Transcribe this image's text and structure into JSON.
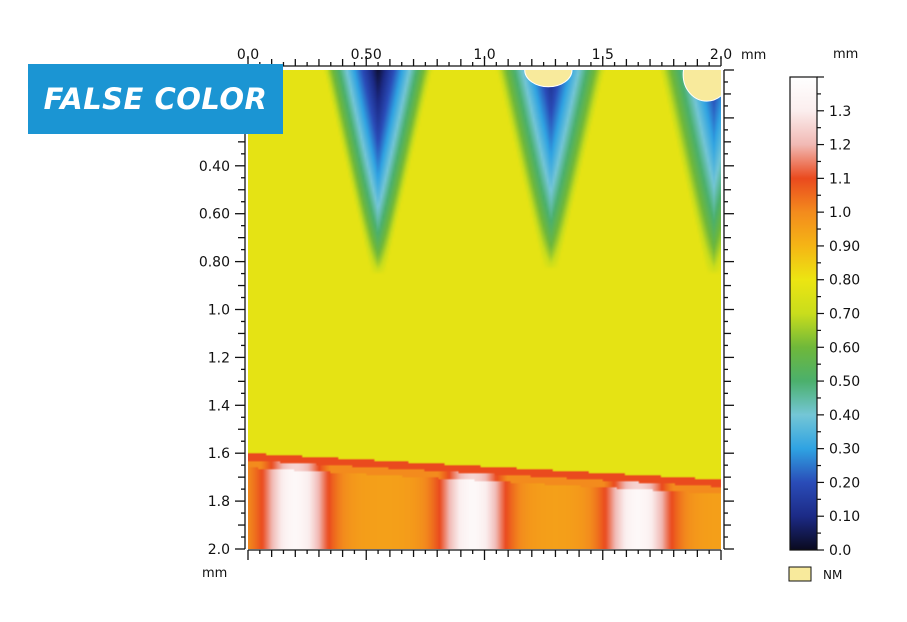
{
  "banner": {
    "text": "FALSE COLOR"
  },
  "chart_data": {
    "type": "heatmap",
    "x_axis": {
      "unit": "mm",
      "range": [
        0,
        2.0
      ],
      "ticks": [
        {
          "v": 0,
          "label": "0.0"
        },
        {
          "v": 0.5,
          "label": "0.50"
        },
        {
          "v": 1.0,
          "label": "1.0"
        },
        {
          "v": 1.5,
          "label": "1.5"
        },
        {
          "v": 2.0,
          "label": "2.0"
        }
      ]
    },
    "y_axis": {
      "unit": "mm",
      "range": [
        0,
        2.0
      ],
      "ticks": [
        {
          "v": 0.4,
          "label": "0.40"
        },
        {
          "v": 0.6,
          "label": "0.60"
        },
        {
          "v": 0.8,
          "label": "0.80"
        },
        {
          "v": 1.0,
          "label": "1.0"
        },
        {
          "v": 1.2,
          "label": "1.2"
        },
        {
          "v": 1.4,
          "label": "1.4"
        },
        {
          "v": 1.6,
          "label": "1.6"
        },
        {
          "v": 1.8,
          "label": "1.8"
        },
        {
          "v": 2.0,
          "label": "2.0"
        }
      ]
    },
    "colorbar": {
      "unit": "mm",
      "range": [
        0,
        1.4
      ],
      "ticks": [
        {
          "v": 0.0,
          "label": "0.0"
        },
        {
          "v": 0.1,
          "label": "0.10"
        },
        {
          "v": 0.2,
          "label": "0.20"
        },
        {
          "v": 0.3,
          "label": "0.30"
        },
        {
          "v": 0.4,
          "label": "0.40"
        },
        {
          "v": 0.5,
          "label": "0.50"
        },
        {
          "v": 0.6,
          "label": "0.60"
        },
        {
          "v": 0.7,
          "label": "0.70"
        },
        {
          "v": 0.8,
          "label": "0.80"
        },
        {
          "v": 0.9,
          "label": "0.90"
        },
        {
          "v": 1.0,
          "label": "1.0"
        },
        {
          "v": 1.1,
          "label": "1.1"
        },
        {
          "v": 1.2,
          "label": "1.2"
        },
        {
          "v": 1.3,
          "label": "1.3"
        }
      ],
      "stops": [
        {
          "v": 0.0,
          "color": "#0a0a1e"
        },
        {
          "v": 0.1,
          "color": "#1c2a86"
        },
        {
          "v": 0.2,
          "color": "#2a4cb8"
        },
        {
          "v": 0.3,
          "color": "#2fa3e2"
        },
        {
          "v": 0.4,
          "color": "#74c6d6"
        },
        {
          "v": 0.5,
          "color": "#4bb06c"
        },
        {
          "v": 0.6,
          "color": "#6fb83a"
        },
        {
          "v": 0.7,
          "color": "#c9dd1c"
        },
        {
          "v": 0.8,
          "color": "#ece512"
        },
        {
          "v": 0.9,
          "color": "#f5b515"
        },
        {
          "v": 1.0,
          "color": "#f38b1d"
        },
        {
          "v": 1.1,
          "color": "#ea4a1e"
        },
        {
          "v": 1.2,
          "color": "#f1b9b4"
        },
        {
          "v": 1.3,
          "color": "#fbeeee"
        },
        {
          "v": 1.4,
          "color": "#ffffff"
        }
      ]
    },
    "nm_legend": {
      "label": "NM",
      "color": "#f8ea9c"
    },
    "surface": {
      "base_value": 0.78,
      "grooves": [
        {
          "x": 0.55,
          "depth_value": 0.02,
          "tip_y": 0.85
        },
        {
          "x": 1.28,
          "depth_value": 0.1,
          "tip_y": 0.83
        },
        {
          "x": 1.97,
          "depth_value": 0.15,
          "tip_y": 0.85
        }
      ],
      "bottom_band": {
        "edge_y_left": 1.6,
        "edge_y_right": 1.71,
        "peaks": [
          {
            "x": 0.2,
            "value": 1.35
          },
          {
            "x": 0.95,
            "value": 1.35
          },
          {
            "x": 1.65,
            "value": 1.35
          }
        ],
        "valley_value": 0.95
      },
      "nm_regions": [
        {
          "x": 1.27,
          "y": 0.0,
          "rx": 0.1,
          "ry": 0.07
        },
        {
          "x": 1.94,
          "y": 0.02,
          "rx": 0.1,
          "ry": 0.11
        }
      ]
    }
  }
}
